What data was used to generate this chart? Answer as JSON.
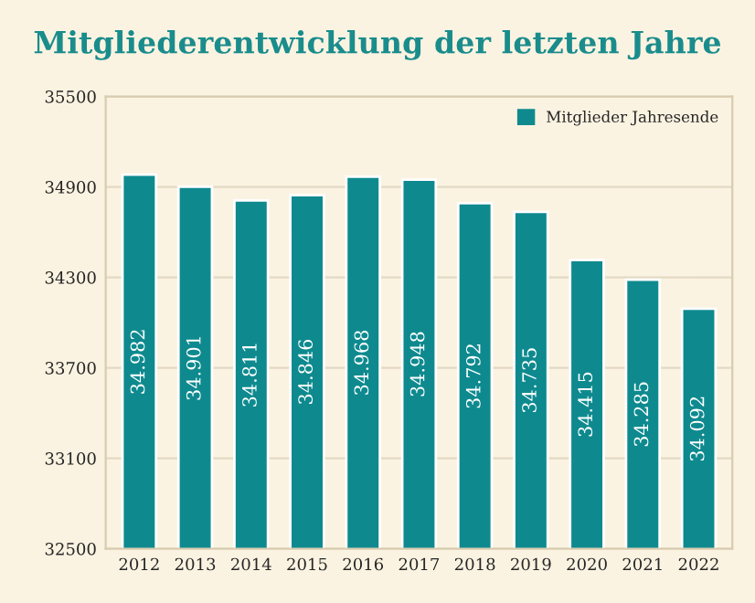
{
  "chart_data": {
    "type": "bar",
    "title": "Mitgliederentwicklung der letzten Jahre",
    "categories": [
      "2012",
      "2013",
      "2014",
      "2015",
      "2016",
      "2017",
      "2018",
      "2019",
      "2020",
      "2021",
      "2022"
    ],
    "series": [
      {
        "name": "Mitglieder Jahresende",
        "color": "#0e8a8f",
        "values": [
          34982,
          34901,
          34811,
          34846,
          34968,
          34948,
          34792,
          34735,
          34415,
          34285,
          34092
        ],
        "value_labels": [
          "34.982",
          "34.901",
          "34.811",
          "34.846",
          "34.968",
          "34.948",
          "34.792",
          "34.735",
          "34.415",
          "34.285",
          "34.092"
        ]
      }
    ],
    "ylim": [
      32500,
      35500
    ],
    "yticks": [
      32500,
      33100,
      33700,
      34300,
      34900,
      35500
    ],
    "grid": "y",
    "legend": "top right"
  }
}
